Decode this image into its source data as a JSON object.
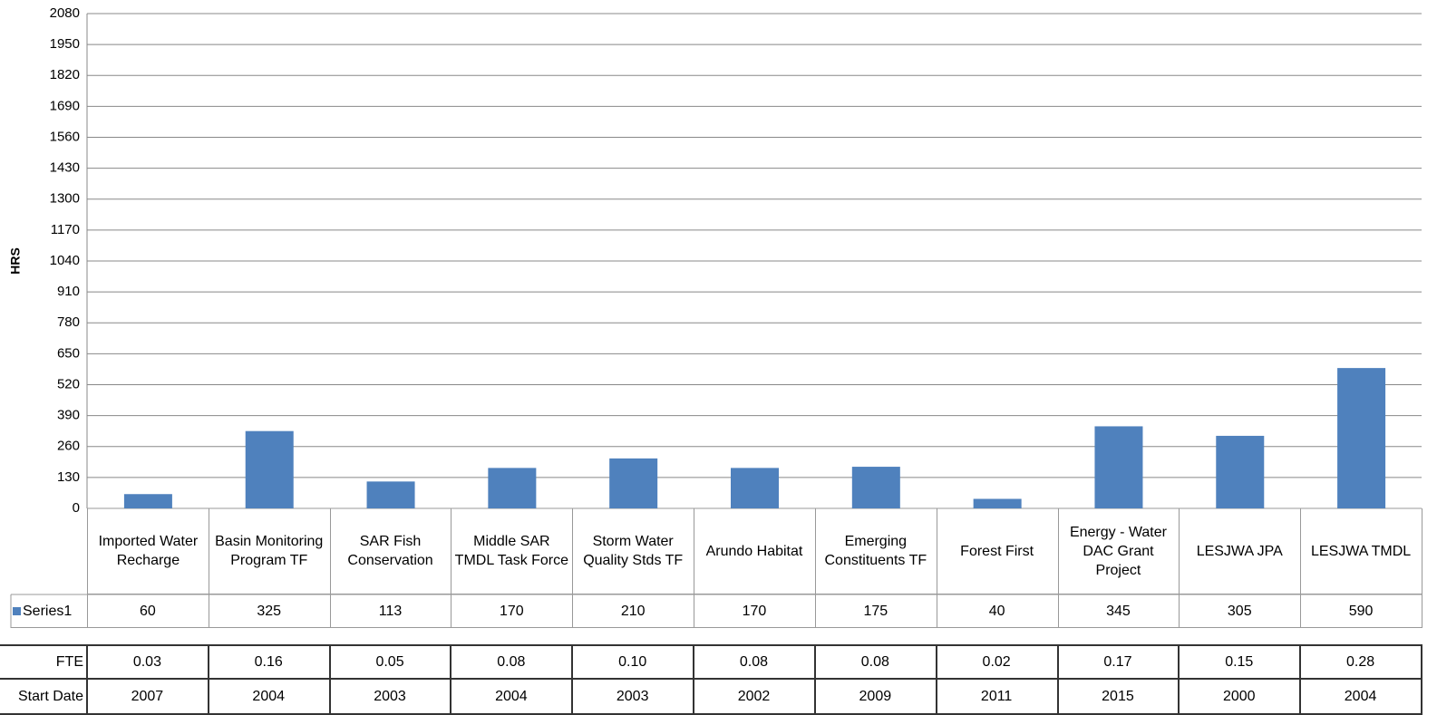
{
  "chart_data": {
    "type": "bar",
    "y_label": "HRS",
    "categories": [
      "Imported Water Recharge",
      "Basin Monitoring Program TF",
      "SAR Fish Conservation",
      "Middle SAR TMDL Task Force",
      "Storm Water Quality Stds TF",
      "Arundo Habitat",
      "Emerging Constituents TF",
      "Forest First",
      "Energy - Water DAC Grant Project",
      "LESJWA JPA",
      "LESJWA TMDL"
    ],
    "series": [
      {
        "name": "Series1",
        "color": "#4f81bd",
        "values": [
          60,
          325,
          113,
          170,
          210,
          170,
          175,
          40,
          345,
          305,
          590
        ]
      }
    ],
    "ylim": [
      0,
      2080
    ],
    "yticks": [
      0,
      130,
      260,
      390,
      520,
      650,
      780,
      910,
      1040,
      1170,
      1300,
      1430,
      1560,
      1690,
      1820,
      1950,
      2080
    ],
    "grid": true
  },
  "table": {
    "rows": [
      {
        "label": "FTE",
        "values": [
          "0.03",
          "0.16",
          "0.05",
          "0.08",
          "0.10",
          "0.08",
          "0.08",
          "0.02",
          "0.17",
          "0.15",
          "0.28"
        ]
      },
      {
        "label": "Start Date",
        "values": [
          "2007",
          "2004",
          "2003",
          "2004",
          "2003",
          "2002",
          "2009",
          "2011",
          "2015",
          "2000",
          "2004"
        ]
      }
    ]
  }
}
